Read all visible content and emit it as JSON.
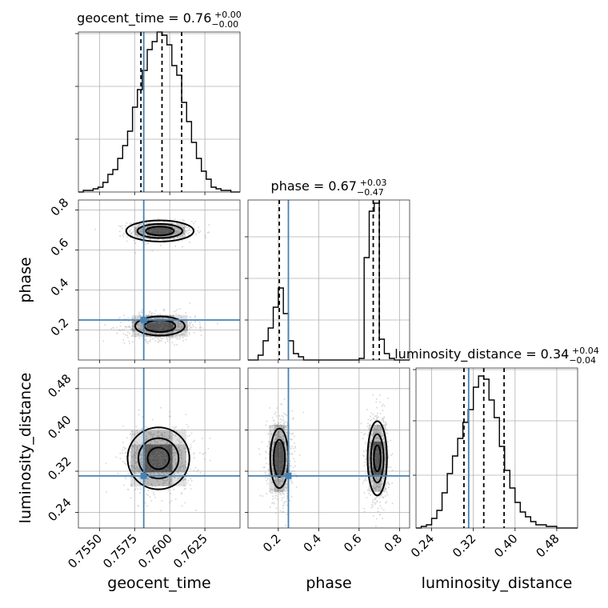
{
  "colors": {
    "truth": "#4682b4",
    "histogram": "#000000",
    "density": "#000000",
    "scatter": "#888888",
    "grid": "#b0b0b0"
  },
  "chart_data": {
    "type": "corner",
    "grid": true,
    "parameters": [
      {
        "name": "geocent_time",
        "label": "geocent_time",
        "range": [
          0.7535,
          0.765
        ],
        "ticks": [
          0.755,
          0.7575,
          0.76,
          0.7625
        ],
        "tick_labels": [
          "0.7550",
          "0.7575",
          "0.7600",
          "0.7625"
        ],
        "title_main": "geocent_time = 0.76",
        "title_sup": "+0.00",
        "title_sub": "−0.00",
        "median": 0.75945,
        "quantiles": [
          0.75795,
          0.75945,
          0.76085
        ],
        "truth": 0.75815,
        "hist_y_max": 1.0,
        "hist_y_ticks": [
          0.33,
          0.66,
          0.99
        ],
        "hist": {
          "edges": [
            0.7535,
            0.75385,
            0.7542,
            0.75455,
            0.7549,
            0.75525,
            0.7556,
            0.75595,
            0.7563,
            0.75665,
            0.757,
            0.75735,
            0.7577,
            0.75805,
            0.7584,
            0.75875,
            0.7591,
            0.75945,
            0.7598,
            0.76015,
            0.7605,
            0.76085,
            0.7612,
            0.76155,
            0.7619,
            0.76225,
            0.7626,
            0.76295,
            0.7633,
            0.76365,
            0.764,
            0.76435,
            0.7647,
            0.765
          ],
          "counts": [
            0.0,
            0.01,
            0.01,
            0.02,
            0.03,
            0.06,
            0.11,
            0.14,
            0.21,
            0.29,
            0.38,
            0.53,
            0.64,
            0.76,
            0.89,
            0.94,
            1.0,
            0.98,
            0.92,
            0.79,
            0.73,
            0.56,
            0.44,
            0.31,
            0.21,
            0.13,
            0.08,
            0.03,
            0.02,
            0.01,
            0.01,
            0.0,
            0.0
          ]
        }
      },
      {
        "name": "phase",
        "label": "phase",
        "range": [
          0.05,
          0.85
        ],
        "ticks": [
          0.2,
          0.4,
          0.6,
          0.8
        ],
        "tick_labels": [
          "0.2",
          "0.4",
          "0.6",
          "0.8"
        ],
        "title_main": "phase = 0.67",
        "title_sup": "+0.03",
        "title_sub": "−0.47",
        "median": 0.67,
        "quantiles": [
          0.205,
          0.67,
          0.7
        ],
        "truth": 0.25,
        "hist_y_max": 1.0,
        "hist_y_ticks": [
          0.25,
          0.51,
          0.77
        ],
        "hist": {
          "edges": [
            0.05,
            0.1,
            0.125,
            0.15,
            0.175,
            0.2,
            0.225,
            0.25,
            0.275,
            0.3,
            0.325,
            0.35,
            0.6,
            0.625,
            0.65,
            0.675,
            0.7,
            0.725,
            0.75,
            0.775,
            0.85
          ],
          "counts": [
            0.0,
            0.03,
            0.12,
            0.2,
            0.33,
            0.45,
            0.29,
            0.12,
            0.04,
            0.02,
            0.0,
            0.0,
            0.01,
            0.64,
            0.93,
            0.98,
            0.13,
            0.04,
            0.01,
            0.0
          ]
        }
      },
      {
        "name": "luminosity_distance",
        "label": "luminosity_distance",
        "range": [
          0.21,
          0.52
        ],
        "ticks": [
          0.24,
          0.32,
          0.4,
          0.48
        ],
        "tick_labels": [
          "0.24",
          "0.32",
          "0.40",
          "0.48"
        ],
        "title_main": "luminosity_distance = 0.34",
        "title_sup": "+0.04",
        "title_sub": "−0.04",
        "median": 0.34,
        "quantiles": [
          0.302,
          0.34,
          0.379
        ],
        "truth": 0.311,
        "hist_y_max": 1.0,
        "hist_y_ticks": [
          0.33,
          0.67,
          0.99
        ],
        "hist": {
          "edges": [
            0.21,
            0.22,
            0.23,
            0.24,
            0.25,
            0.26,
            0.27,
            0.28,
            0.29,
            0.3,
            0.31,
            0.32,
            0.33,
            0.34,
            0.35,
            0.36,
            0.37,
            0.38,
            0.39,
            0.4,
            0.41,
            0.42,
            0.43,
            0.44,
            0.45,
            0.46,
            0.47,
            0.48,
            0.49,
            0.5,
            0.51,
            0.52
          ],
          "counts": [
            0.0,
            0.01,
            0.02,
            0.06,
            0.11,
            0.22,
            0.34,
            0.45,
            0.56,
            0.66,
            0.74,
            0.88,
            0.95,
            0.93,
            0.8,
            0.69,
            0.51,
            0.36,
            0.25,
            0.16,
            0.1,
            0.07,
            0.04,
            0.02,
            0.02,
            0.01,
            0.01,
            0.0,
            0.0,
            0.0,
            0.0
          ]
        }
      }
    ],
    "contour_panels": [
      {
        "x": "geocent_time",
        "y": "phase",
        "blobs": [
          {
            "center": [
              0.7593,
              0.695
            ],
            "sigma": [
              0.001,
              0.022
            ],
            "levels": [
              1.0,
              1.6,
              2.4
            ]
          },
          {
            "center": [
              0.7593,
              0.22
            ],
            "sigma": [
              0.0011,
              0.03
            ],
            "levels": [
              1.0,
              1.6
            ]
          }
        ]
      },
      {
        "x": "geocent_time",
        "y": "luminosity_distance",
        "blobs": [
          {
            "center": [
              0.7592,
              0.345
            ],
            "sigma": [
              0.0011,
              0.03
            ],
            "levels": [
              0.7,
              1.3,
              2.0
            ]
          }
        ]
      },
      {
        "x": "phase",
        "y": "luminosity_distance",
        "blobs": [
          {
            "center": [
              0.205,
              0.345
            ],
            "sigma": [
              0.028,
              0.036
            ],
            "levels": [
              1.0,
              1.6
            ]
          },
          {
            "center": [
              0.69,
              0.345
            ],
            "sigma": [
              0.024,
              0.036
            ],
            "levels": [
              0.7,
              1.3,
              2.0
            ]
          }
        ]
      }
    ]
  }
}
